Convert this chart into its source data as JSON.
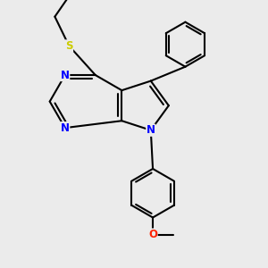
{
  "bg_color": "#ebebeb",
  "bond_color": "#000000",
  "N_color": "#0000ff",
  "S_color": "#cccc00",
  "O_color": "#ff2200",
  "line_width": 1.5,
  "figsize": [
    3.0,
    3.0
  ],
  "dpi": 100,
  "xlim": [
    -2.8,
    2.8
  ],
  "ylim": [
    -3.8,
    2.8
  ]
}
